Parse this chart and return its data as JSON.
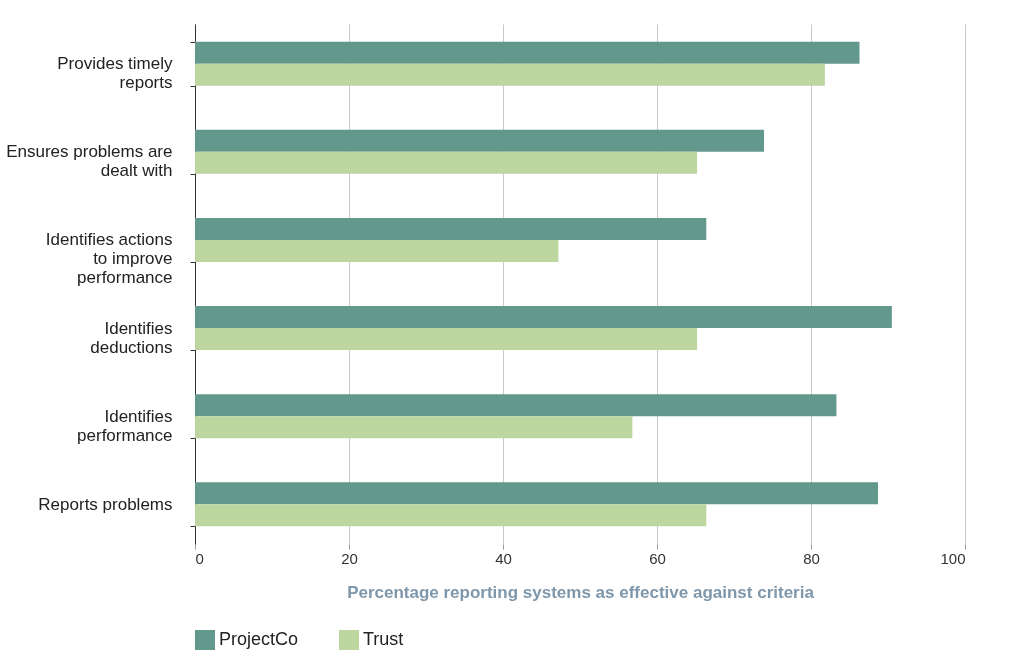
{
  "chart_data": {
    "type": "bar",
    "orientation": "horizontal",
    "xlabel": "Percentage reporting systems as effective against criteria",
    "categories": [
      "Provides timely reports",
      "Ensures problems are dealt with",
      "Identifies actions to improve performance",
      "Identifies deductions",
      "Identifies performance",
      "Reports problems"
    ],
    "series": [
      {
        "name": "ProjectCo",
        "color": "#62998c",
        "values": [
          86.3,
          73.9,
          66.4,
          90.5,
          83.3,
          88.7
        ]
      },
      {
        "name": "Trust",
        "color": "#bdd59f",
        "values": [
          81.8,
          65.2,
          47.2,
          65.2,
          56.8,
          66.4
        ]
      }
    ],
    "xlim": [
      0,
      100
    ],
    "xticks": [
      0,
      20,
      40,
      60,
      80,
      100
    ],
    "grid": "x",
    "legend": "bottom"
  }
}
